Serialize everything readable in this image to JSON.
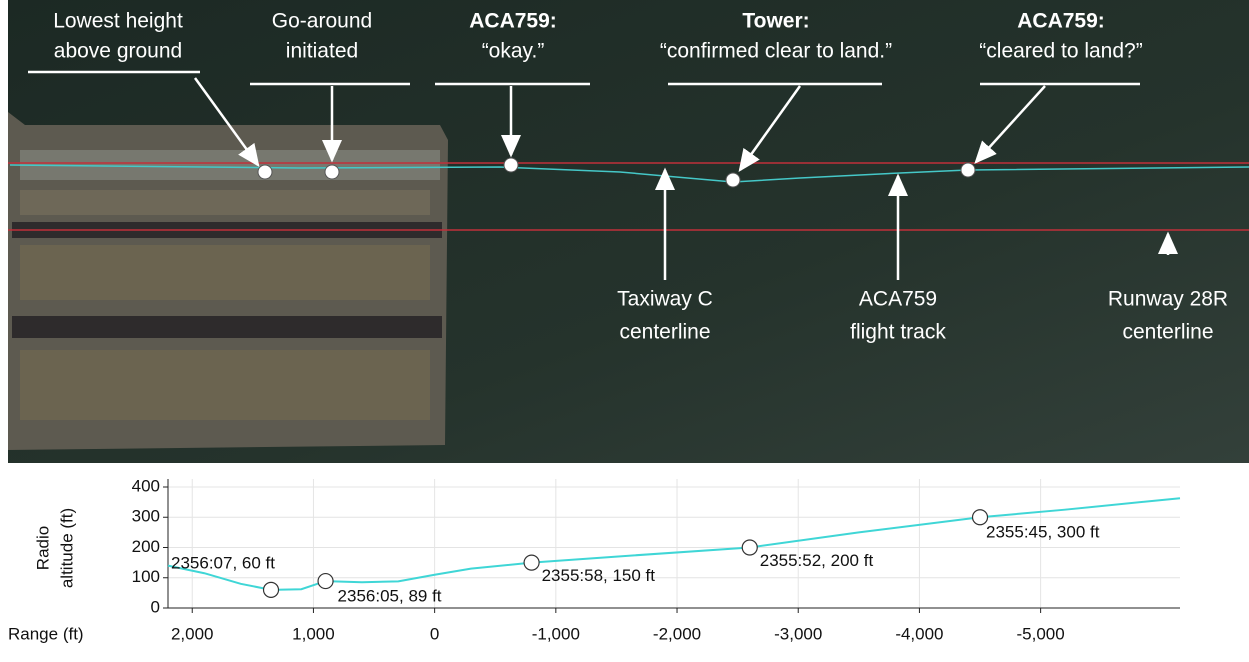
{
  "image": {
    "annotations": [
      {
        "lines": [
          "Lowest height",
          "above ground"
        ]
      },
      {
        "lines": [
          "Go-around",
          "initiated"
        ]
      },
      {
        "speaker": "ACA759:",
        "lines": [
          "“okay.”"
        ]
      },
      {
        "speaker": "Tower:",
        "lines": [
          "“confirmed clear to land.”"
        ]
      },
      {
        "speaker": "ACA759:",
        "lines": [
          "“cleared to land?”"
        ]
      }
    ],
    "labels": [
      {
        "lines": [
          "Taxiway C",
          "centerline"
        ]
      },
      {
        "lines": [
          "ACA759",
          "flight track"
        ]
      },
      {
        "lines": [
          "Runway 28R",
          "centerline"
        ]
      }
    ]
  },
  "chart_data": {
    "type": "line",
    "y_label": [
      "Radio",
      "altitude (ft)"
    ],
    "x_label": "Range (ft)",
    "xlim": [
      2200,
      -6150
    ],
    "xticks": [
      {
        "value": 2000,
        "label": "2,000"
      },
      {
        "value": 1000,
        "label": "1,000"
      },
      0,
      {
        "value": -1000,
        "label": "-1,000"
      },
      {
        "value": -2000,
        "label": "-2,000"
      },
      {
        "value": -3000,
        "label": "-3,000"
      },
      {
        "value": -4000,
        "label": "-4,000"
      },
      {
        "value": -5000,
        "label": "-5,000"
      }
    ],
    "ylim": [
      0,
      400
    ],
    "yticks": [
      0,
      100,
      200,
      300,
      400
    ],
    "grid": true,
    "x": [
      2200,
      1900,
      1600,
      1350,
      1100,
      900,
      600,
      300,
      0,
      -300,
      -800,
      -1500,
      -2600,
      -3500,
      -4500,
      -5200,
      -6150
    ],
    "values": [
      140,
      115,
      80,
      60,
      62,
      89,
      85,
      88,
      110,
      130,
      150,
      170,
      200,
      250,
      300,
      325,
      363
    ],
    "color": "#3fd6d6",
    "points": {
      "x": [
        1350,
        900,
        -800,
        -2600,
        -4500
      ],
      "values": [
        60,
        89,
        150,
        200,
        300
      ],
      "value_labels": [
        "2356:07, 60 ft",
        "2356:05, 89 ft",
        "2355:58, 150 ft",
        "2355:52, 200 ft",
        "2355:45, 300 ft"
      ]
    }
  }
}
